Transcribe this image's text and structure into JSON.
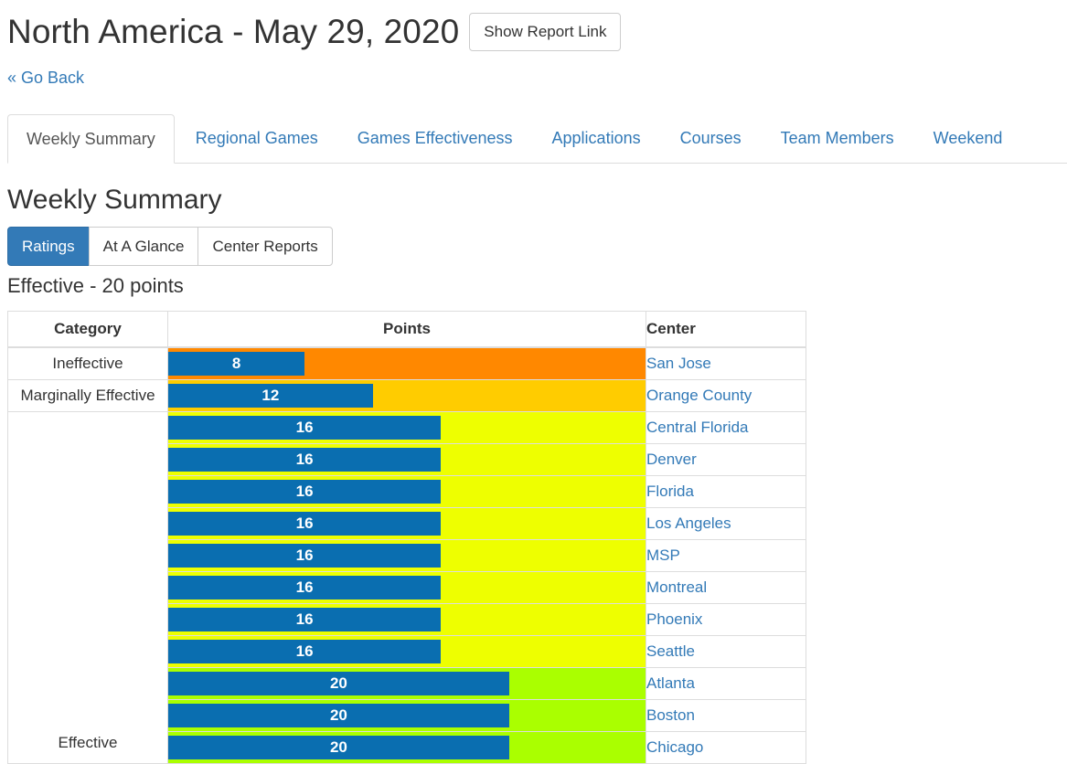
{
  "header": {
    "title": "North America - May 29, 2020",
    "report_link_label": "Show Report Link",
    "go_back_label": "« Go Back"
  },
  "tabs": [
    {
      "label": "Weekly Summary",
      "active": true
    },
    {
      "label": "Regional Games",
      "active": false
    },
    {
      "label": "Games Effectiveness",
      "active": false
    },
    {
      "label": "Applications",
      "active": false
    },
    {
      "label": "Courses",
      "active": false
    },
    {
      "label": "Team Members",
      "active": false
    },
    {
      "label": "Weekend",
      "active": false
    }
  ],
  "section": {
    "title": "Weekly Summary",
    "buttons": [
      {
        "label": "Ratings",
        "active": true
      },
      {
        "label": "At A Glance",
        "active": false
      },
      {
        "label": "Center Reports",
        "active": false
      }
    ],
    "subtitle": "Effective - 20 points"
  },
  "table": {
    "headers": {
      "category": "Category",
      "points": "Points",
      "center": "Center"
    },
    "max_points": 28,
    "bar_color": "#0a6eb0",
    "groups": [
      {
        "category": "Ineffective",
        "bg_color": "#ff8800",
        "rows": [
          {
            "points": "8",
            "center": "San Jose"
          }
        ]
      },
      {
        "category": "Marginally Effective",
        "bg_color": "#ffcc00",
        "rows": [
          {
            "points": "12",
            "center": "Orange County"
          }
        ]
      },
      {
        "category": "Effective",
        "bg_color": "#eeff00",
        "rows": [
          {
            "points": "16",
            "center": "Central Florida"
          },
          {
            "points": "16",
            "center": "Denver"
          },
          {
            "points": "16",
            "center": "Florida"
          },
          {
            "points": "16",
            "center": "Los Angeles"
          },
          {
            "points": "16",
            "center": "MSP"
          },
          {
            "points": "16",
            "center": "Montreal"
          },
          {
            "points": "16",
            "center": "Phoenix"
          },
          {
            "points": "16",
            "center": "Seattle"
          },
          {
            "points": "20",
            "center": "Atlanta",
            "bg_color": "#aaff00"
          },
          {
            "points": "20",
            "center": "Boston",
            "bg_color": "#aaff00"
          },
          {
            "points": "20",
            "center": "Chicago",
            "bg_color": "#aaff00"
          }
        ]
      }
    ]
  }
}
